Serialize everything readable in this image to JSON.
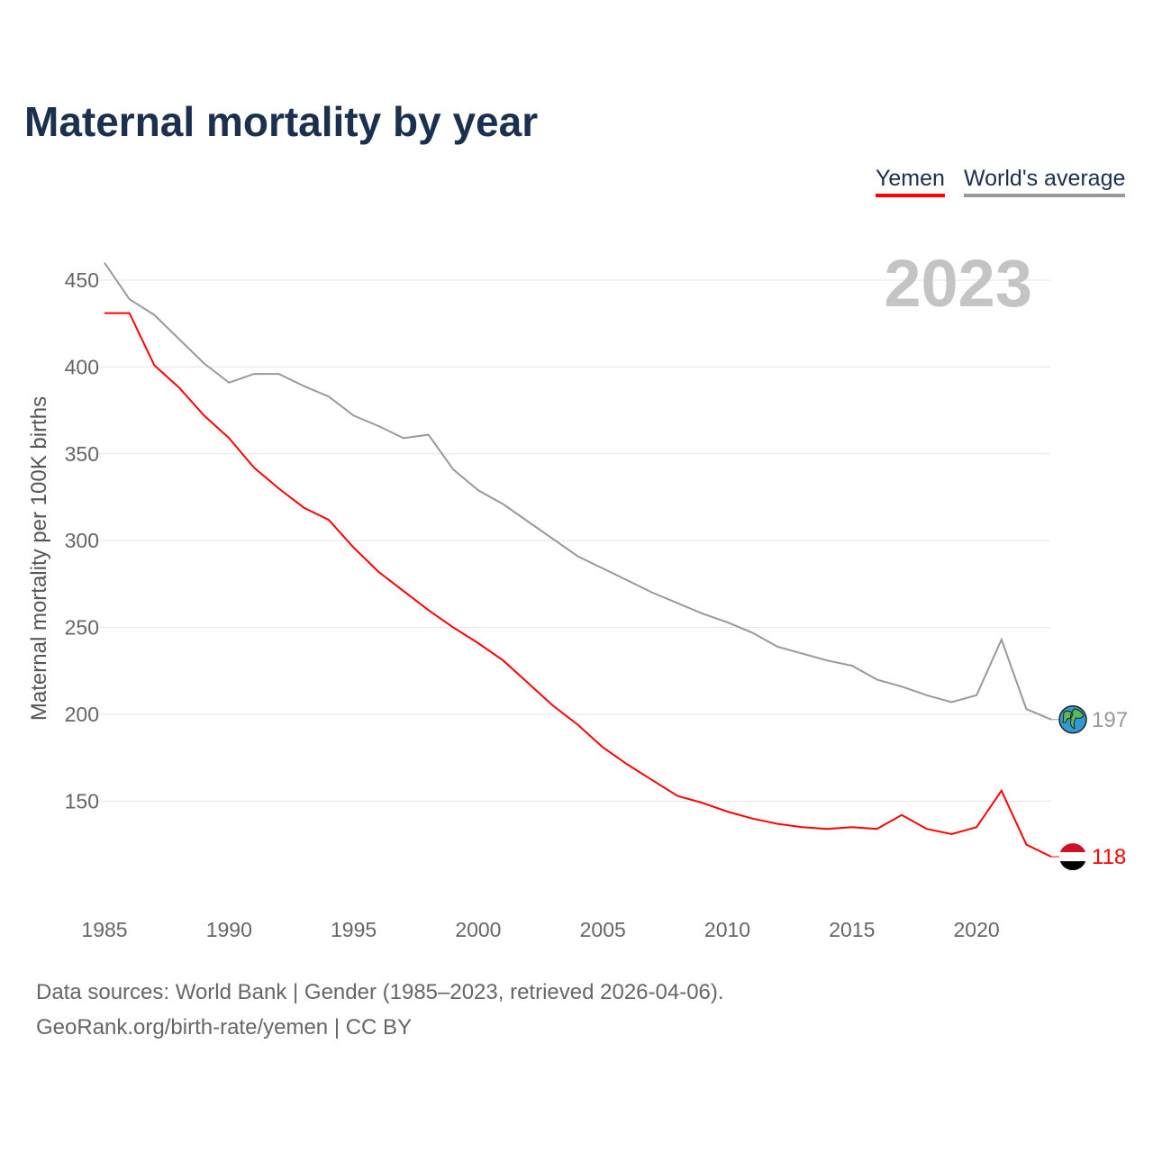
{
  "chart_data": {
    "type": "line",
    "title": "Maternal mortality by year",
    "xlabel": "",
    "ylabel": "Maternal mortality per 100K births",
    "year_label": "2023",
    "xlim": [
      1985,
      2023
    ],
    "ylim": [
      100,
      460
    ],
    "yticks": [
      150,
      200,
      250,
      300,
      350,
      400,
      450
    ],
    "xticks": [
      1985,
      1990,
      1995,
      2000,
      2005,
      2010,
      2015,
      2020
    ],
    "grid": true,
    "legend_position": "top-right",
    "x": [
      1985,
      1986,
      1987,
      1988,
      1989,
      1990,
      1991,
      1992,
      1993,
      1994,
      1995,
      1996,
      1997,
      1998,
      1999,
      2000,
      2001,
      2002,
      2003,
      2004,
      2005,
      2006,
      2007,
      2008,
      2009,
      2010,
      2011,
      2012,
      2013,
      2014,
      2015,
      2016,
      2017,
      2018,
      2019,
      2020,
      2021,
      2022,
      2023
    ],
    "series": [
      {
        "name": "Yemen",
        "color": "#ff0000",
        "end_label": "118",
        "icon": "yemen-flag",
        "values": [
          431,
          431,
          401,
          388,
          372,
          359,
          342,
          330,
          319,
          312,
          296,
          282,
          271,
          260,
          250,
          241,
          231,
          218,
          205,
          194,
          181,
          171,
          162,
          153,
          149,
          144,
          140,
          137,
          135,
          134,
          135,
          134,
          142,
          134,
          131,
          135,
          156,
          125,
          118
        ]
      },
      {
        "name": "World's average",
        "color": "#999999",
        "end_label": "197",
        "icon": "globe",
        "values": [
          460,
          439,
          430,
          416,
          402,
          391,
          396,
          396,
          389,
          383,
          372,
          366,
          359,
          361,
          341,
          329,
          321,
          311,
          301,
          291,
          284,
          277,
          270,
          264,
          258,
          253,
          247,
          239,
          235,
          231,
          228,
          220,
          216,
          211,
          207,
          211,
          243,
          203,
          197
        ]
      }
    ]
  },
  "footer": {
    "line1": "Data sources: World Bank | Gender (1985–2023, retrieved 2026-04-06).",
    "line2": "GeoRank.org/birth-rate/yemen | CC BY"
  }
}
